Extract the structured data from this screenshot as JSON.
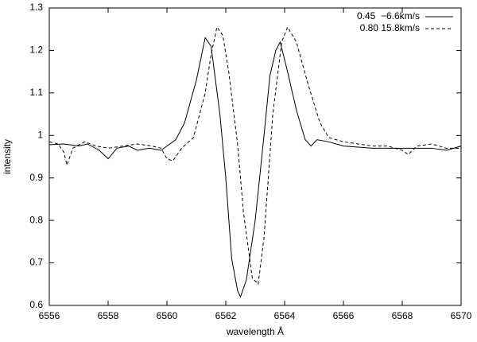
{
  "chart_data": {
    "type": "line",
    "xlabel": "wavelength Å",
    "ylabel": "intensity",
    "xlim": [
      6556,
      6570
    ],
    "xticks": [
      6556,
      6558,
      6560,
      6562,
      6564,
      6566,
      6568,
      6570
    ],
    "ylim": [
      0.6,
      1.3
    ],
    "yticks": [
      0.6,
      0.7,
      0.8,
      0.9,
      1,
      1.1,
      1.2,
      1.3
    ],
    "legend": "top-right",
    "series": [
      {
        "name": "0.45  −6.6km/s",
        "color": "#000000",
        "dash": "solid",
        "x": [
          6556,
          6556.5,
          6557,
          6557.3,
          6557.7,
          6558,
          6558.3,
          6558.7,
          6559,
          6559.4,
          6559.8,
          6560,
          6560.3,
          6560.6,
          6561,
          6561.3,
          6561.5,
          6561.8,
          6562,
          6562.2,
          6562.4,
          6562.5,
          6562.7,
          6563,
          6563.3,
          6563.5,
          6563.7,
          6563.85,
          6564.1,
          6564.4,
          6564.7,
          6564.9,
          6565.1,
          6565.5,
          6566,
          6567,
          6568,
          6569,
          6569.5,
          6570
        ],
        "values": [
          0.978,
          0.98,
          0.975,
          0.98,
          0.965,
          0.945,
          0.97,
          0.975,
          0.965,
          0.97,
          0.965,
          0.975,
          0.99,
          1.03,
          1.13,
          1.23,
          1.21,
          1.05,
          0.9,
          0.71,
          0.635,
          0.62,
          0.66,
          0.8,
          1.0,
          1.14,
          1.2,
          1.22,
          1.15,
          1.06,
          0.99,
          0.975,
          0.99,
          0.985,
          0.975,
          0.97,
          0.97,
          0.97,
          0.965,
          0.975
        ]
      },
      {
        "name": "0.80 15.8km/s",
        "color": "#000000",
        "dash": "dashed",
        "x": [
          6556,
          6556.3,
          6556.5,
          6556.6,
          6556.8,
          6557.2,
          6557.6,
          6558,
          6558.5,
          6559,
          6559.5,
          6559.8,
          6560,
          6560.2,
          6560.5,
          6560.9,
          6561.3,
          6561.5,
          6561.7,
          6561.9,
          6562.1,
          6562.4,
          6562.6,
          6562.9,
          6563.1,
          6563.3,
          6563.6,
          6563.9,
          6564.1,
          6564.4,
          6564.8,
          6565.2,
          6565.5,
          6566,
          6566.5,
          6567,
          6567.5,
          6568,
          6568.2,
          6568.5,
          6569,
          6569.5,
          6570
        ],
        "values": [
          0.985,
          0.98,
          0.96,
          0.93,
          0.97,
          0.985,
          0.975,
          0.97,
          0.975,
          0.98,
          0.975,
          0.97,
          0.945,
          0.94,
          0.97,
          0.995,
          1.1,
          1.19,
          1.255,
          1.235,
          1.15,
          0.98,
          0.82,
          0.665,
          0.65,
          0.76,
          1.05,
          1.22,
          1.255,
          1.22,
          1.12,
          1.03,
          0.995,
          0.985,
          0.98,
          0.975,
          0.975,
          0.965,
          0.955,
          0.975,
          0.98,
          0.97,
          0.97
        ]
      }
    ]
  }
}
